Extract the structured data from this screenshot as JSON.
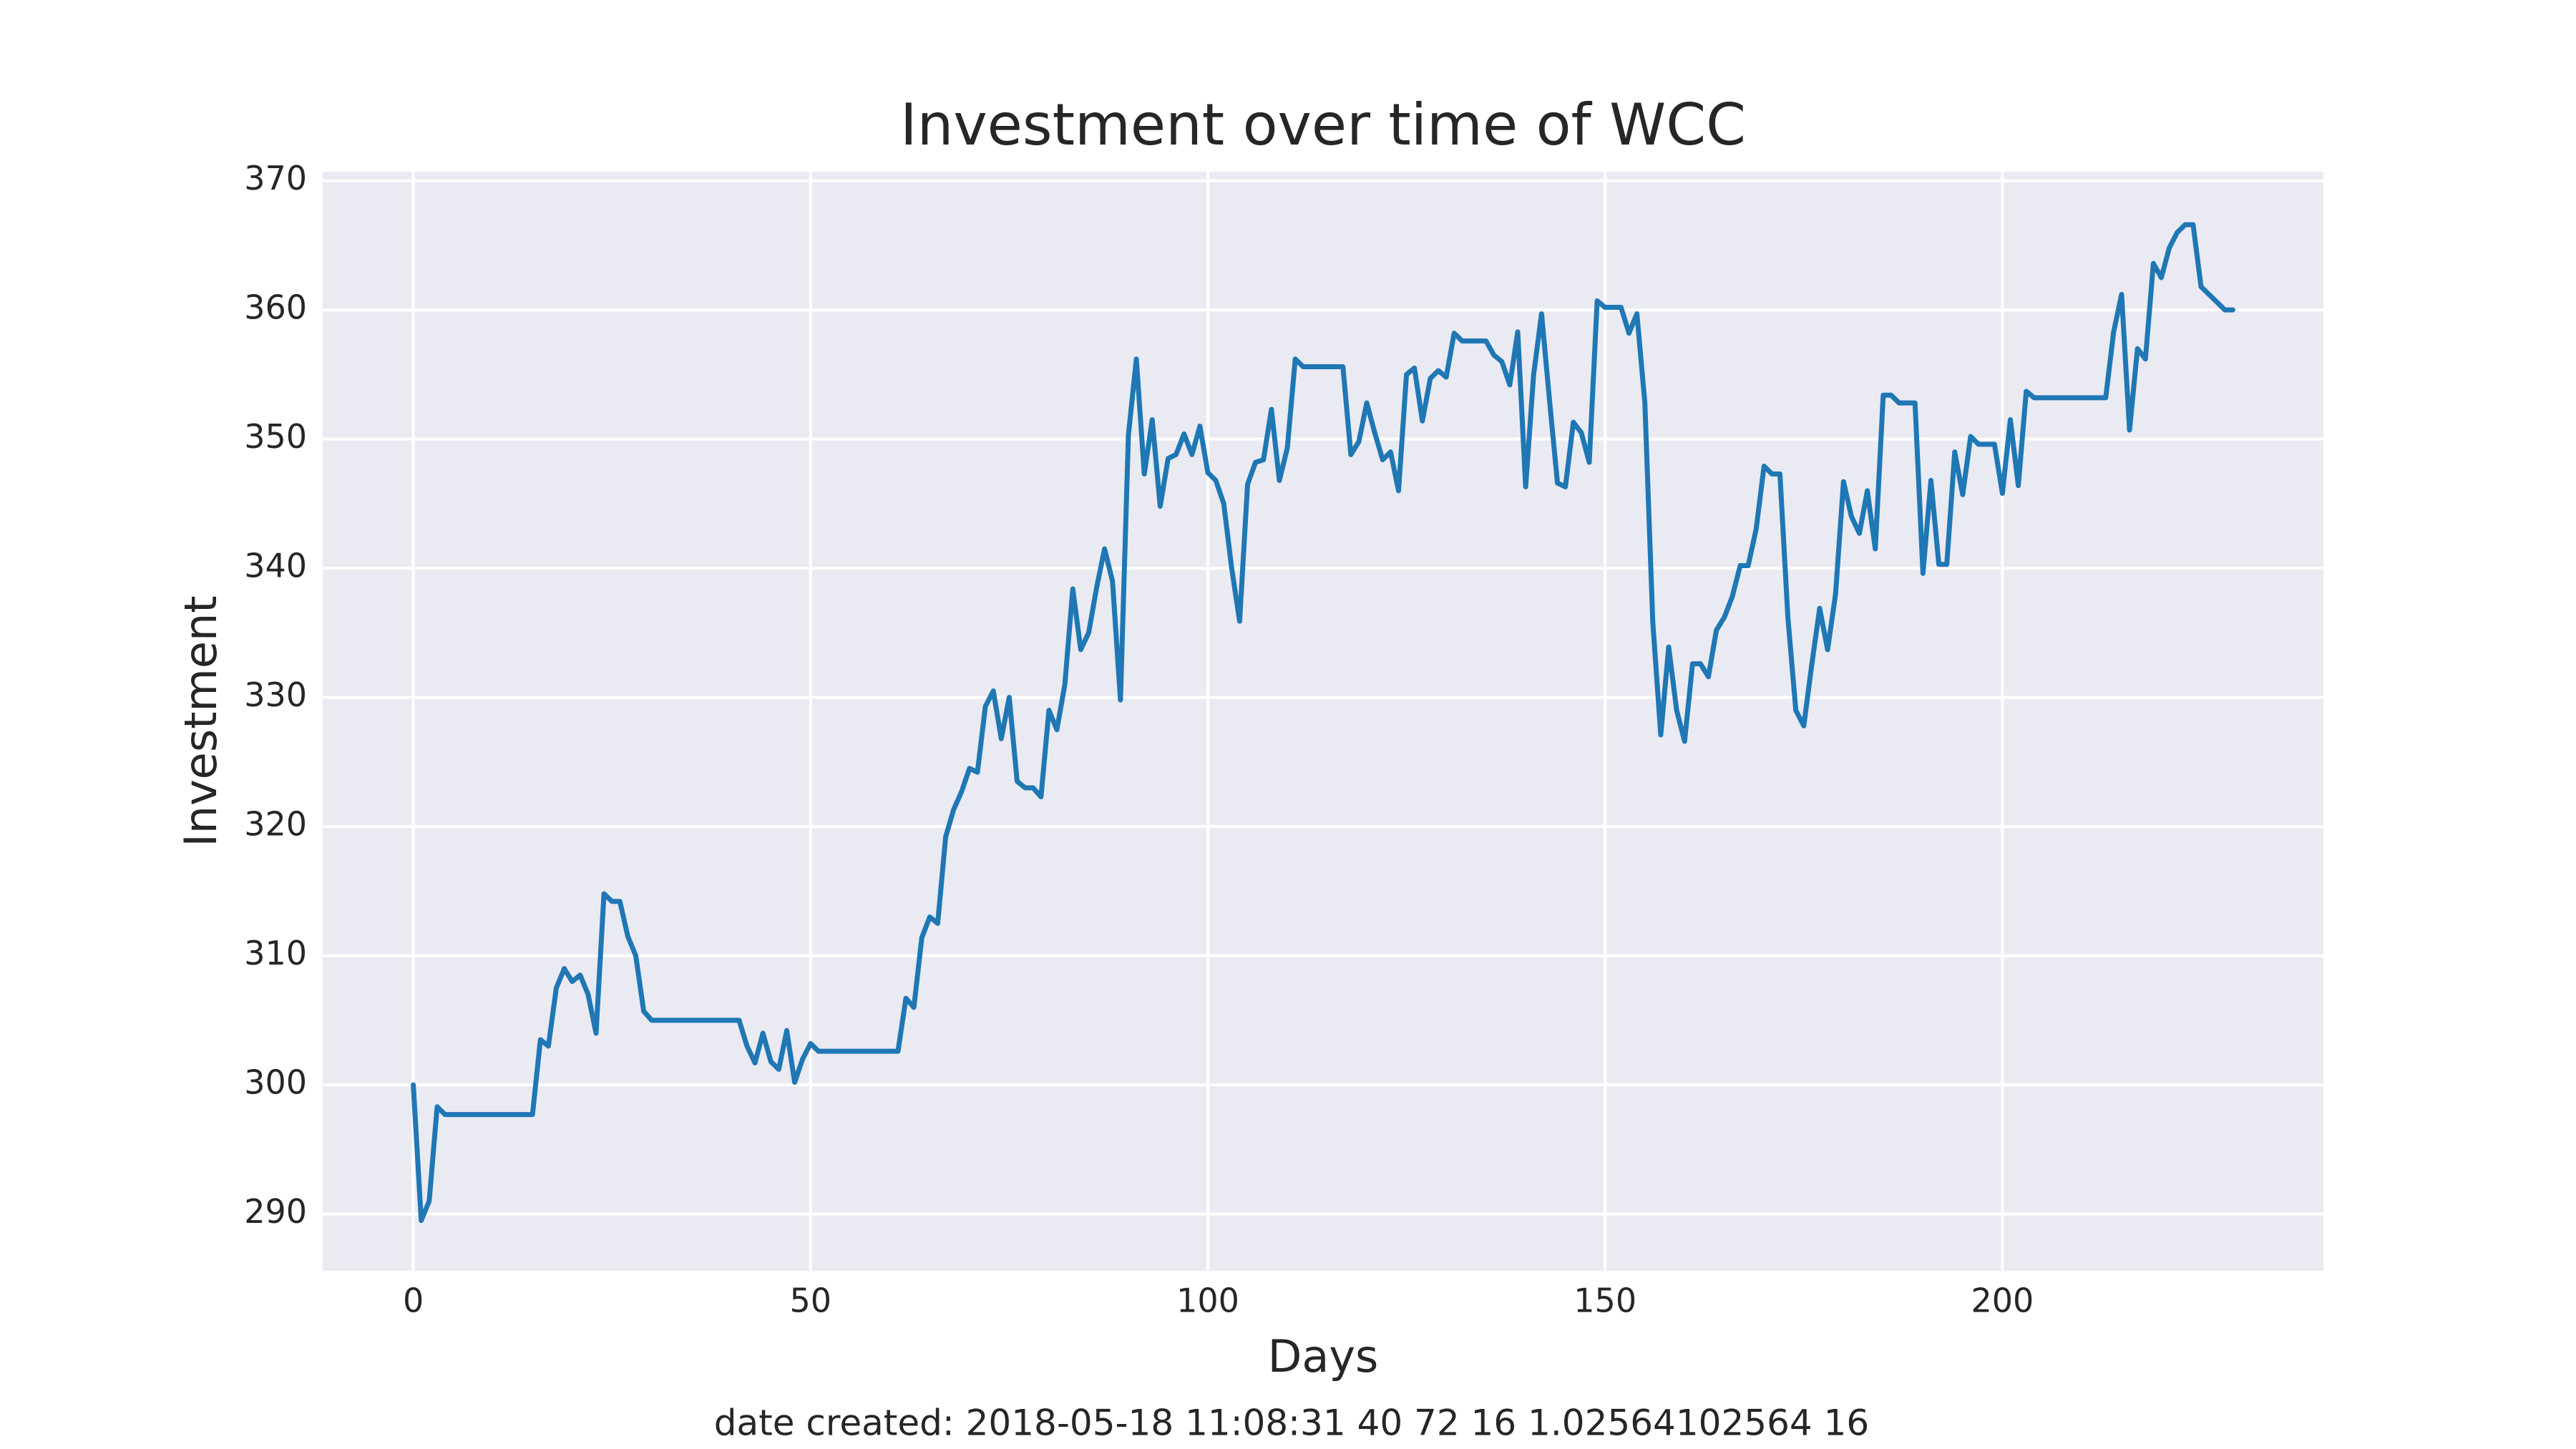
{
  "chart_data": {
    "type": "line",
    "title": "Investment over time of WCC",
    "xlabel": "Days",
    "ylabel": "Investment",
    "footer": "date created: 2018-05-18 11:08:31 40 72 16 1.02564102564 16",
    "grid": true,
    "xlim": [
      -11.4,
      240.4
    ],
    "ylim": [
      285.6,
      370.7
    ],
    "xticks": [
      0,
      50,
      100,
      150,
      200
    ],
    "yticks": [
      290,
      300,
      310,
      320,
      330,
      340,
      350,
      360,
      370
    ],
    "x": [
      0,
      1,
      2,
      3,
      4,
      5,
      6,
      7,
      8,
      9,
      10,
      11,
      12,
      13,
      14,
      15,
      16,
      17,
      18,
      19,
      20,
      21,
      22,
      23,
      24,
      25,
      26,
      27,
      28,
      29,
      30,
      31,
      32,
      33,
      34,
      35,
      36,
      37,
      38,
      39,
      40,
      41,
      42,
      43,
      44,
      45,
      46,
      47,
      48,
      49,
      50,
      51,
      52,
      53,
      54,
      55,
      56,
      57,
      58,
      59,
      60,
      61,
      62,
      63,
      64,
      65,
      66,
      67,
      68,
      69,
      70,
      71,
      72,
      73,
      74,
      75,
      76,
      77,
      78,
      79,
      80,
      81,
      82,
      83,
      84,
      85,
      86,
      87,
      88,
      89,
      90,
      91,
      92,
      93,
      94,
      95,
      96,
      97,
      98,
      99,
      100,
      101,
      102,
      103,
      104,
      105,
      106,
      107,
      108,
      109,
      110,
      111,
      112,
      113,
      114,
      115,
      116,
      117,
      118,
      119,
      120,
      121,
      122,
      123,
      124,
      125,
      126,
      127,
      128,
      129,
      130,
      131,
      132,
      133,
      134,
      135,
      136,
      137,
      138,
      139,
      140,
      141,
      142,
      143,
      144,
      145,
      146,
      147,
      148,
      149,
      150,
      151,
      152,
      153,
      154,
      155,
      156,
      157,
      158,
      159,
      160,
      161,
      162,
      163,
      164,
      165,
      166,
      167,
      168,
      169,
      170,
      171,
      172,
      173,
      174,
      175,
      176,
      177,
      178,
      179,
      180,
      181,
      182,
      183,
      184,
      185,
      186,
      187,
      188,
      189,
      190,
      191,
      192,
      193,
      194,
      195,
      196,
      197,
      198,
      199,
      200,
      201,
      202,
      203,
      204,
      205,
      206,
      207,
      208,
      209,
      210,
      211,
      212,
      213,
      214,
      215,
      216,
      217,
      218,
      219,
      220,
      221,
      222,
      223,
      224,
      225,
      226,
      227,
      228,
      229
    ],
    "series": [
      {
        "color": "#1f77b4",
        "values": [
          300,
          289.5,
          291,
          298.3,
          297.7,
          297.7,
          297.7,
          297.7,
          297.7,
          297.7,
          297.7,
          297.7,
          297.7,
          297.7,
          297.7,
          297.7,
          303.5,
          303,
          307.5,
          309,
          308,
          308.5,
          307,
          304,
          314.8,
          314.2,
          314.2,
          311.5,
          310,
          305.7,
          305,
          305,
          305,
          305,
          305,
          305,
          305,
          305,
          305,
          305,
          305,
          305,
          303,
          301.7,
          304,
          301.8,
          301.2,
          304.2,
          300.2,
          302,
          303.2,
          302.6,
          302.6,
          302.6,
          302.6,
          302.6,
          302.6,
          302.6,
          302.6,
          302.6,
          302.6,
          302.6,
          306.7,
          306,
          311.4,
          313,
          312.5,
          319.2,
          321.3,
          322.7,
          324.5,
          324.2,
          329.3,
          330.5,
          326.8,
          330,
          323.5,
          323,
          323,
          322.3,
          329,
          327.5,
          331,
          338.4,
          333.7,
          335,
          338.5,
          341.5,
          339,
          329.8,
          350.3,
          356.2,
          347.3,
          351.5,
          344.8,
          348.5,
          348.8,
          350.4,
          348.8,
          351,
          347.4,
          346.8,
          345,
          340,
          335.9,
          346.5,
          348.2,
          348.4,
          352.3,
          346.8,
          349.3,
          356.2,
          355.6,
          355.6,
          355.6,
          355.6,
          355.6,
          355.6,
          348.8,
          349.8,
          352.8,
          350.5,
          348.4,
          349,
          346,
          355,
          355.5,
          351.4,
          354.7,
          355.3,
          354.8,
          358.2,
          357.6,
          357.6,
          357.6,
          357.6,
          356.5,
          356,
          354.2,
          358.3,
          346.3,
          355,
          359.7,
          353,
          346.6,
          346.3,
          351.3,
          350.5,
          348.2,
          360.7,
          360.2,
          360.2,
          360.2,
          358.2,
          359.7,
          352.8,
          335.8,
          327.1,
          333.9,
          329,
          326.6,
          332.6,
          332.6,
          331.6,
          335.2,
          336.2,
          337.8,
          340.2,
          340.2,
          343,
          347.9,
          347.3,
          347.3,
          336.2,
          329,
          327.8,
          332.5,
          336.9,
          333.7,
          338,
          346.7,
          344,
          342.7,
          346,
          341.5,
          353.4,
          353.4,
          352.8,
          352.8,
          352.8,
          339.6,
          346.8,
          340.3,
          340.3,
          349,
          345.7,
          350.2,
          349.6,
          349.6,
          349.6,
          345.8,
          351.5,
          346.4,
          353.7,
          353.2,
          353.2,
          353.2,
          353.2,
          353.2,
          353.2,
          353.2,
          353.2,
          353.2,
          353.2,
          358.3,
          361.2,
          350.7,
          357,
          356.2,
          363.6,
          362.5,
          364.8,
          366,
          366.6,
          366.6,
          361.8,
          361.2,
          360.6,
          360,
          360
        ]
      }
    ]
  }
}
